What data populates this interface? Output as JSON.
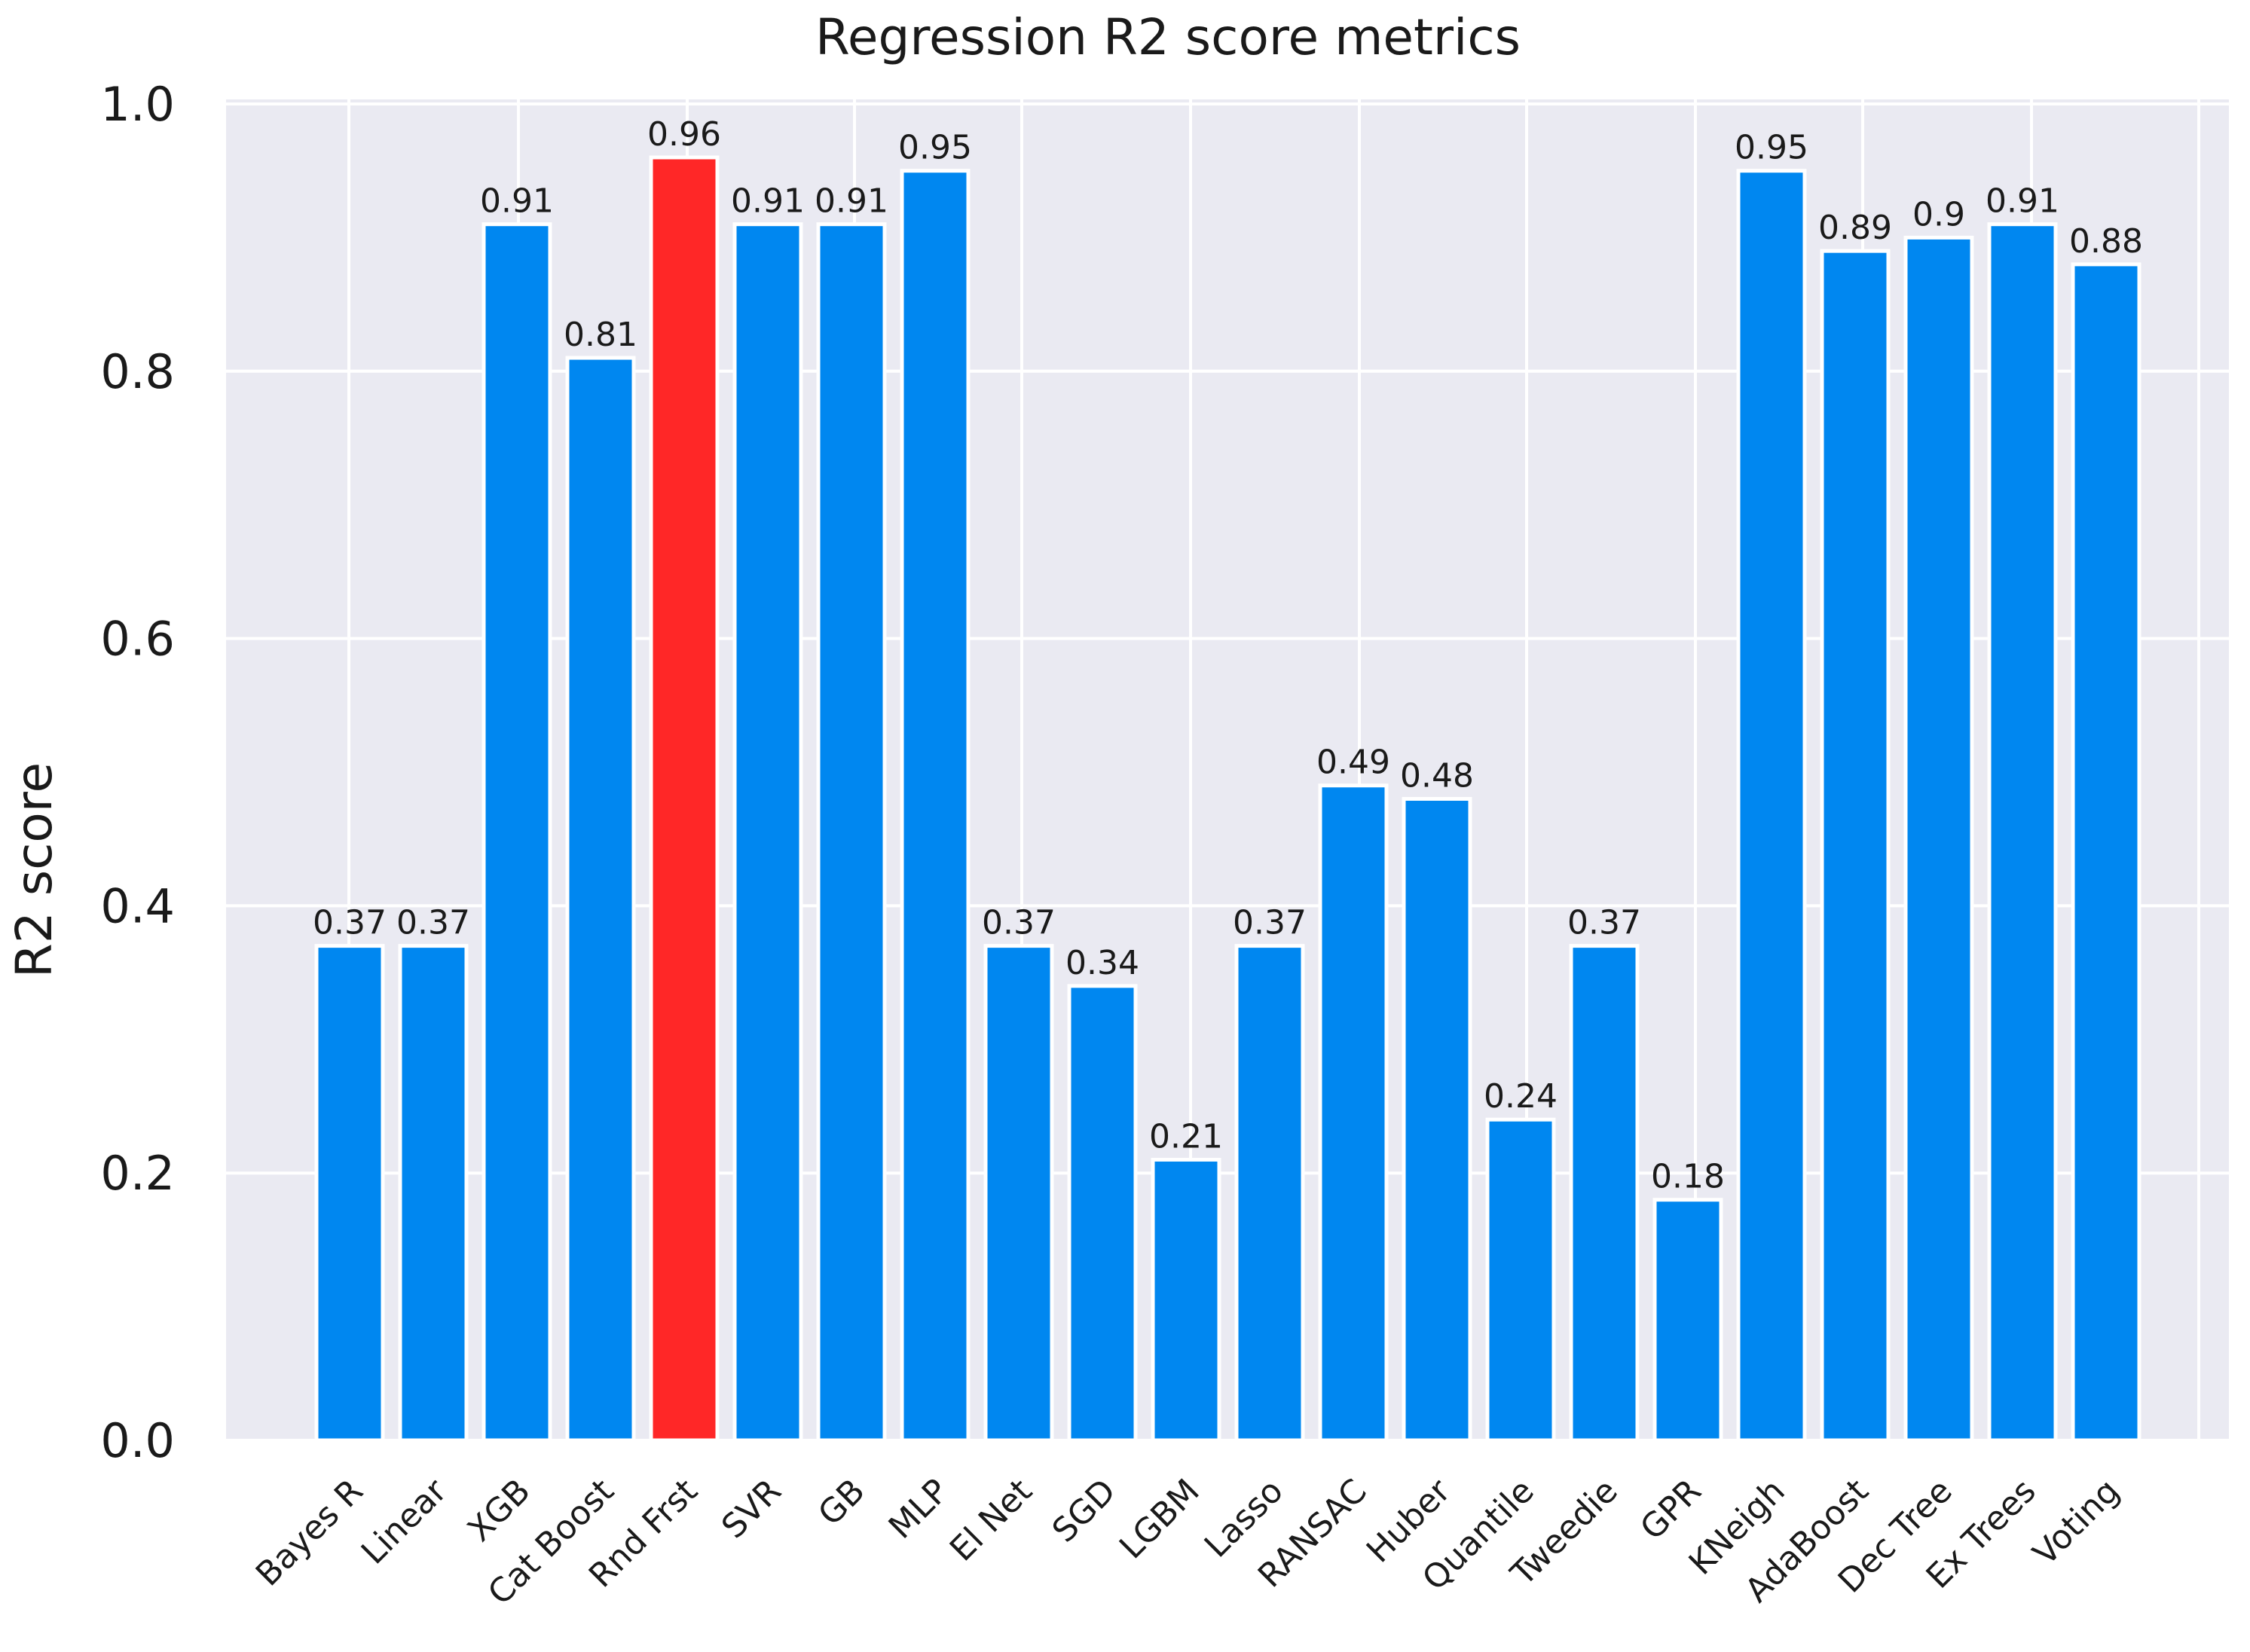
{
  "chart_data": {
    "type": "bar",
    "title": "Regression R2 score metrics",
    "xlabel": "",
    "ylabel": "R2 score",
    "ylim": [
      0,
      1.0
    ],
    "yticks": [
      "0.0",
      "0.2",
      "0.4",
      "0.6",
      "0.8",
      "1.0"
    ],
    "grid": true,
    "categories": [
      "Bayes R",
      "Linear",
      "XGB",
      "Cat Boost",
      "Rnd Frst",
      "SVR",
      "GB",
      "MLP",
      "El Net",
      "SGD",
      "LGBM",
      "Lasso",
      "RANSAC",
      "Huber",
      "Quantile",
      "Tweedie",
      "GPR",
      "KNeigh",
      "AdaBoost",
      "Dec Tree",
      "Ex Trees",
      "Voting"
    ],
    "values": [
      0.37,
      0.37,
      0.91,
      0.81,
      0.96,
      0.91,
      0.91,
      0.95,
      0.37,
      0.34,
      0.21,
      0.37,
      0.49,
      0.48,
      0.24,
      0.37,
      0.18,
      0.95,
      0.89,
      0.9,
      0.91,
      0.88
    ],
    "data_labels": [
      "0.37",
      "0.37",
      "0.91",
      "0.81",
      "0.96",
      "0.91",
      "0.91",
      "0.95",
      "0.37",
      "0.34",
      "0.21",
      "0.37",
      "0.49",
      "0.48",
      "0.24",
      "0.37",
      "0.18",
      "0.95",
      "0.89",
      "0.9",
      "0.91",
      "0.88"
    ],
    "highlight_index": 4,
    "colors": {
      "bar": "#0087f0",
      "highlight": "#ff2727",
      "background": "#eaeaf2",
      "grid": "#ffffff"
    }
  }
}
